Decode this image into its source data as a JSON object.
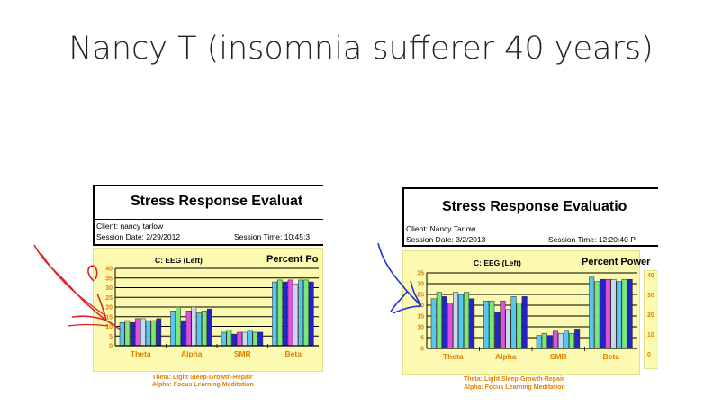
{
  "slide": {
    "title": "Nancy T (insomnia sufferer 40 years)"
  },
  "reports": [
    {
      "header": {
        "title": "Stress Response Evaluat",
        "client": "Client: nancy tarlow",
        "session_date": "Session Date: 2/29/2012",
        "session_time": "Session Time: 10:45:3"
      },
      "panel": {
        "eeg_title": "C: EEG (Left)",
        "percent_title": "Percent Po"
      },
      "legend": [
        "Theta: Light Sleep-Growth-Repair",
        "Alpha: Focus Learning Meditation"
      ]
    },
    {
      "header": {
        "title": "Stress Response Evaluatio",
        "client": "Client: Nancy Tarlow",
        "session_date": "Session Date: 3/2/2013",
        "session_time": "Session Time: 12:20:40 P"
      },
      "panel": {
        "eeg_title": "C: EEG (Left)",
        "percent_title": "Percent Power"
      },
      "legend": [
        "Theta: Light Sleep-Growth-Repair",
        "Alpha: Focus Learning Meditation"
      ],
      "side_ticks": [
        "40",
        "30",
        "20",
        "10",
        "0"
      ]
    }
  ],
  "colors": {
    "bar_colors": [
      "#55c8f0",
      "#78e878",
      "#2424c8",
      "#e050e0",
      "#c8d8f0"
    ],
    "panel_bg": "#fbfab0",
    "label_orange": "#e08000",
    "arrow_left": "#e02020",
    "arrow_right": "#2030d8"
  },
  "chart_data": [
    {
      "type": "bar",
      "title": "C: EEG (Left)",
      "categories": [
        "Theta",
        "Alpha",
        "SMR",
        "Beta"
      ],
      "yticks": [
        "0",
        "5",
        "10",
        "15",
        "20",
        "25",
        "30",
        "35",
        "40"
      ],
      "ylim": [
        0,
        40
      ],
      "grid": true,
      "values": [
        [
          12,
          13,
          12,
          14,
          14,
          13,
          13,
          14
        ],
        [
          18,
          20,
          13,
          18,
          20,
          17,
          18,
          19
        ],
        [
          7,
          8,
          6,
          7,
          7,
          8,
          7,
          7
        ],
        [
          33,
          34,
          33,
          34,
          32,
          34,
          34,
          33
        ]
      ]
    },
    {
      "type": "bar",
      "title": "C: EEG (Left)",
      "categories": [
        "Theta",
        "Alpha",
        "SMR",
        "Beta"
      ],
      "yticks": [
        "0",
        "5",
        "10",
        "15",
        "20",
        "25",
        "30",
        "35"
      ],
      "ylim": [
        0,
        35
      ],
      "grid": true,
      "values": [
        [
          23,
          26,
          24,
          21,
          26,
          25,
          26,
          23
        ],
        [
          22,
          22,
          17,
          22,
          18,
          24,
          21,
          24
        ],
        [
          6,
          7,
          6,
          8,
          7,
          8,
          7,
          9
        ],
        [
          33,
          31,
          32,
          32,
          32,
          31,
          32,
          32
        ]
      ]
    }
  ]
}
